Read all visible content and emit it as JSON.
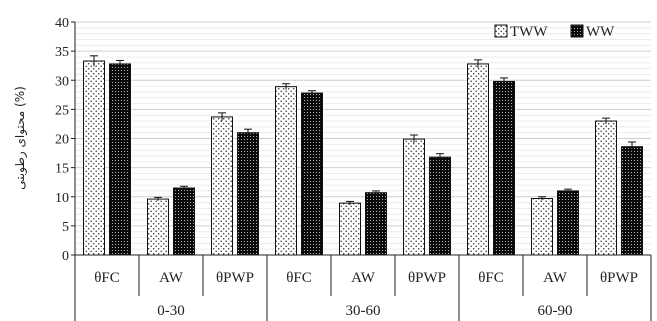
{
  "chart_data": {
    "type": "bar",
    "ylabel": "محتوای رطوبتی (%)",
    "ylim": [
      0,
      40
    ],
    "yticks": [
      0,
      5,
      10,
      15,
      20,
      25,
      30,
      35,
      40
    ],
    "grid": true,
    "legend_position": "top-right",
    "groups": [
      {
        "label": "0-30",
        "categories": [
          "θFC",
          "AW",
          "θPWP"
        ]
      },
      {
        "label": "30-60",
        "categories": [
          "θFC",
          "AW",
          "θPWP"
        ]
      },
      {
        "label": "60-90",
        "categories": [
          "θFC",
          "AW",
          "θPWP"
        ]
      }
    ],
    "series": [
      {
        "name": "TWW",
        "color": "#ffffff",
        "pattern": "sparse-dots",
        "values": [
          33.3,
          9.6,
          23.7,
          28.9,
          8.9,
          19.9,
          32.8,
          9.7,
          23.0
        ],
        "errors": [
          0.9,
          0.3,
          0.7,
          0.5,
          0.3,
          0.7,
          0.7,
          0.3,
          0.5
        ]
      },
      {
        "name": "WW",
        "color": "#111111",
        "pattern": "dense-dots",
        "values": [
          32.8,
          11.5,
          21.0,
          27.8,
          10.7,
          16.8,
          29.8,
          11.0,
          18.6
        ],
        "errors": [
          0.6,
          0.3,
          0.6,
          0.4,
          0.3,
          0.6,
          0.6,
          0.3,
          0.8
        ]
      }
    ]
  }
}
